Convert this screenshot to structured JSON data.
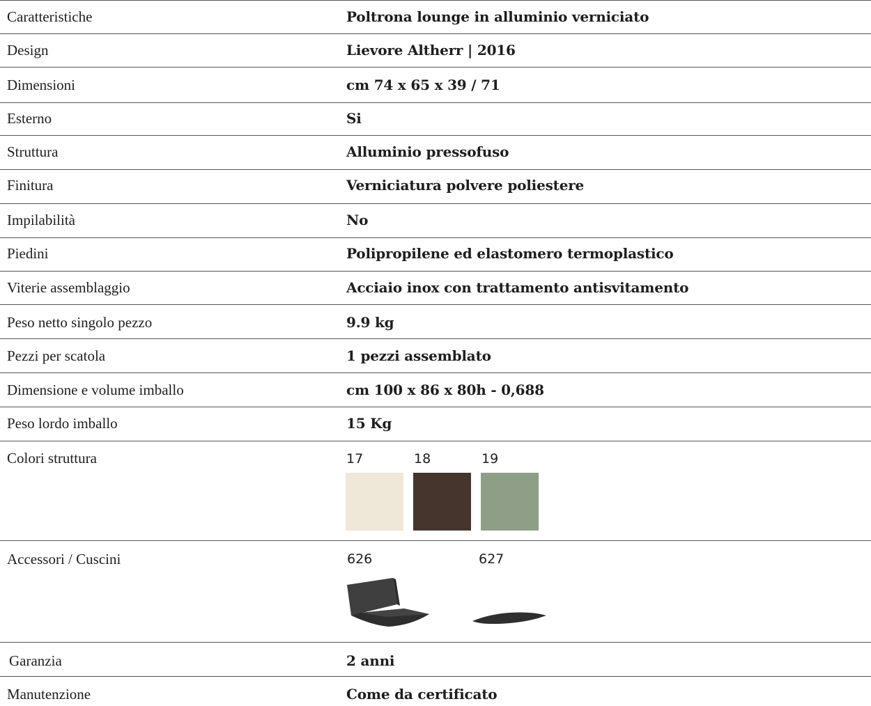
{
  "specs": [
    {
      "label": "Caratteristiche",
      "value": "Poltrona lounge in alluminio verniciato"
    },
    {
      "label": "Design",
      "value": "Lievore Altherr | 2016"
    },
    {
      "label": "Dimensioni",
      "value": "cm 74 x 65 x 39 / 71"
    },
    {
      "label": "Esterno",
      "value": "Si"
    },
    {
      "label": "Struttura",
      "value": "Alluminio pressofuso"
    },
    {
      "label": "Finitura",
      "value": "Verniciatura polvere poliestere"
    },
    {
      "label": "Impilabilità",
      "value": "No"
    },
    {
      "label": "Piedini",
      "value": "Polipropilene ed elastomero termoplastico"
    },
    {
      "label": "Viterie assemblaggio",
      "value": "Acciaio inox con trattamento antisvitamento"
    },
    {
      "label": "Peso netto singolo pezzo",
      "value": "9.9 kg"
    },
    {
      "label": "Pezzi per scatola",
      "value": "1 pezzi assemblato"
    },
    {
      "label": "Dimensione e volume imballo",
      "value": "cm 100 x 86 x 80h - 0,688"
    },
    {
      "label": "Peso lordo imballo",
      "value": "15 Kg"
    }
  ],
  "colors": {
    "label": "Colori struttura",
    "swatches": [
      {
        "code": "17",
        "color": "#efe8d9"
      },
      {
        "code": "18",
        "color": "#45352c"
      },
      {
        "code": "19",
        "color": "#8e9e87"
      }
    ]
  },
  "accessories": {
    "label": "Accessori  / Cuscini",
    "items": [
      {
        "code": "626",
        "icon": "seat-back-cushion-icon"
      },
      {
        "code": "627",
        "icon": "seat-cushion-icon"
      }
    ]
  },
  "footer_rows": [
    {
      "label": "Garanzia",
      "value": "2 anni"
    },
    {
      "label": "Manutenzione",
      "value": "Come da certificato"
    }
  ]
}
